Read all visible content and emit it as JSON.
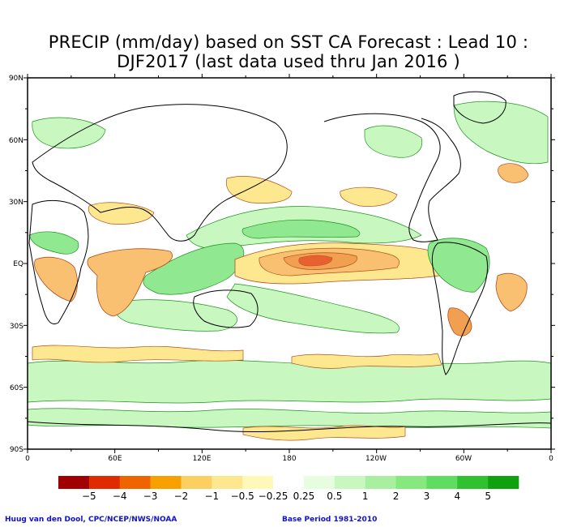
{
  "title": {
    "line1": "PRECIP (mm/day) based on SST CA Forecast : Lead 10 :",
    "line2": "DJF2017 (last data used thru Jan 2016 )"
  },
  "axes": {
    "lat_labels": [
      "90N",
      "60N",
      "30N",
      "EQ",
      "30S",
      "60S",
      "90S"
    ],
    "lon_labels": [
      "0",
      "60E",
      "120E",
      "180",
      "120W",
      "60W",
      "0"
    ]
  },
  "colorbar": {
    "colors": [
      "#a00000",
      "#e02a00",
      "#f06400",
      "#f8a000",
      "#fcd060",
      "#fde890",
      "#fff8b8",
      "#ffffff",
      "#e6fde0",
      "#c8f8c0",
      "#a8f0a0",
      "#88e880",
      "#60dc60",
      "#30c030",
      "#10a010"
    ],
    "labels": [
      "−5",
      "−4",
      "−3",
      "−2",
      "−1",
      "−0.5",
      "−0.25",
      "0.25",
      "0.5",
      "1",
      "2",
      "3",
      "4",
      "5"
    ]
  },
  "footer": {
    "credit": "Huug van den Dool, CPC/NCEP/NWS/NOAA",
    "base_period": "Base Period 1981-2010"
  },
  "colors": {
    "dry_light": "#fde890",
    "dry_mid": "#f8c070",
    "dry_strong": "#f0a050",
    "dry_extreme": "#e86030",
    "wet_light": "#c8f8c0",
    "wet_mid": "#90e890",
    "wet_strong": "#60d060",
    "dry_contour": "#b05020",
    "wet_contour": "#209020",
    "coast": "#000000"
  }
}
